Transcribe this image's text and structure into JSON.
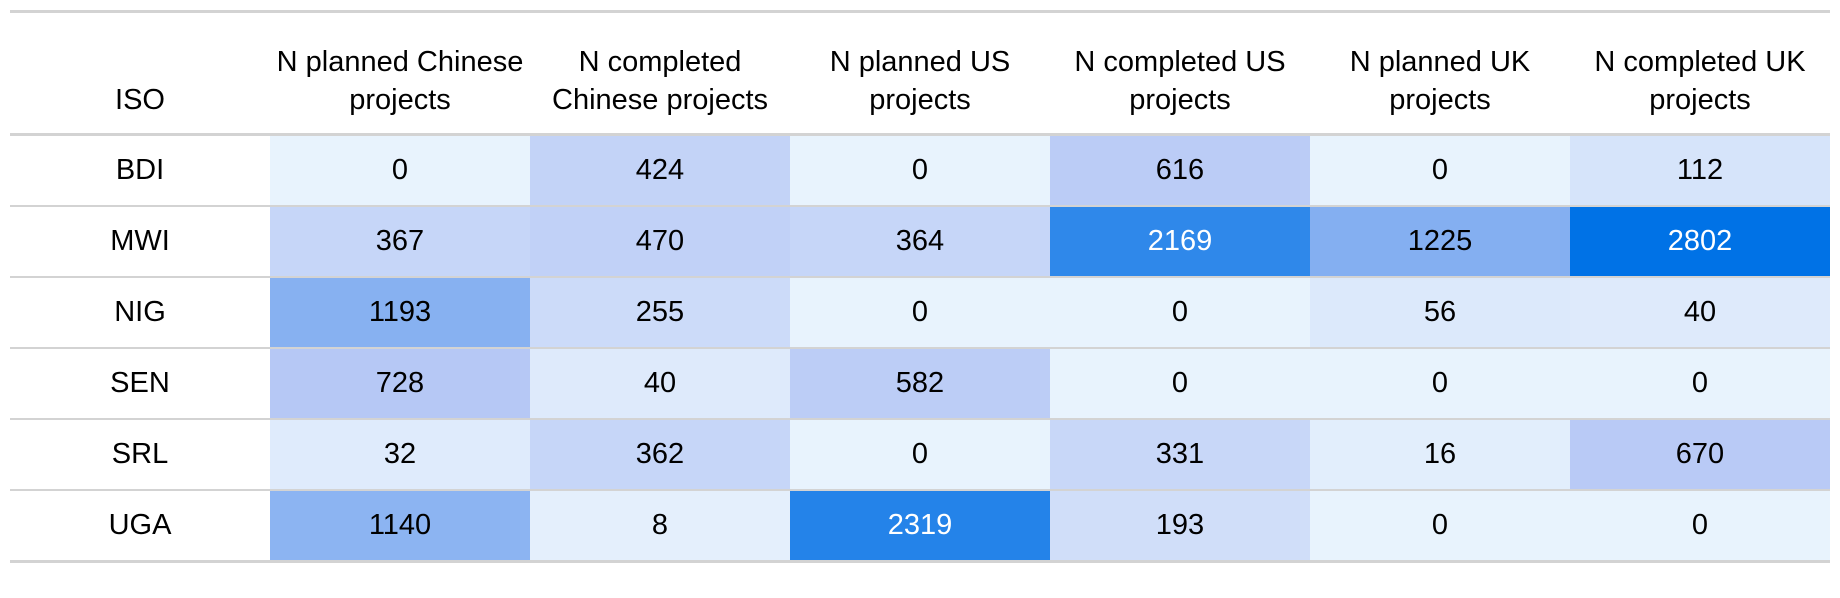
{
  "chart_data": {
    "type": "table",
    "columns": [
      "ISO",
      "N planned Chinese projects",
      "N completed Chinese projects",
      "N planned US projects",
      "N completed US projects",
      "N planned UK projects",
      "N completed UK projects"
    ],
    "rows": [
      {
        "iso": "BDI",
        "values": [
          0,
          424,
          0,
          616,
          0,
          112
        ]
      },
      {
        "iso": "MWI",
        "values": [
          367,
          470,
          364,
          2169,
          1225,
          2802
        ]
      },
      {
        "iso": "NIG",
        "values": [
          1193,
          255,
          0,
          0,
          56,
          40
        ]
      },
      {
        "iso": "SEN",
        "values": [
          728,
          40,
          582,
          0,
          0,
          0
        ]
      },
      {
        "iso": "SRL",
        "values": [
          32,
          362,
          0,
          331,
          16,
          670
        ]
      },
      {
        "iso": "UGA",
        "values": [
          1140,
          8,
          2319,
          193,
          0,
          0
        ]
      }
    ],
    "color_scale": {
      "low": "#e8f3fd",
      "mid": "#b4c6f5",
      "high": "#0072e6"
    }
  }
}
